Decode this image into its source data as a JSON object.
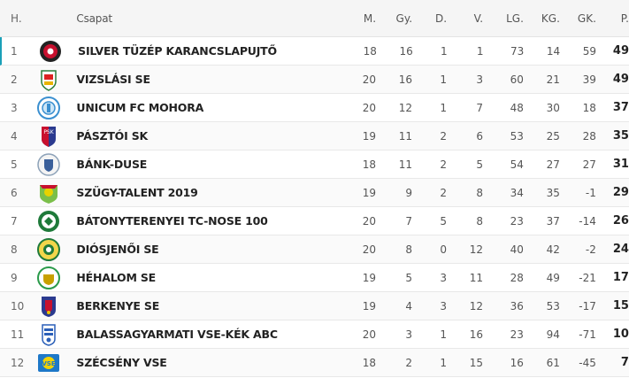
{
  "headers": {
    "pos": "H.",
    "team": "Csapat",
    "m": "M.",
    "gy": "Gy.",
    "d": "D.",
    "v": "V.",
    "lg": "LG.",
    "kg": "KG.",
    "gk": "GK.",
    "p": "P."
  },
  "rows": [
    {
      "pos": "1",
      "team": "SILVER TÜZÉP KARANCSLAPUJTŐ",
      "m": "18",
      "gy": "16",
      "d": "1",
      "v": "1",
      "lg": "73",
      "kg": "14",
      "gk": "59",
      "p": "49",
      "crest": "silver-tuzep-crest"
    },
    {
      "pos": "2",
      "team": "VIZSLÁSI SE",
      "m": "20",
      "gy": "16",
      "d": "1",
      "v": "3",
      "lg": "60",
      "kg": "21",
      "gk": "39",
      "p": "49",
      "crest": "vizslasi-crest"
    },
    {
      "pos": "3",
      "team": "UNICUM FC MOHORA",
      "m": "20",
      "gy": "12",
      "d": "1",
      "v": "7",
      "lg": "48",
      "kg": "30",
      "gk": "18",
      "p": "37",
      "crest": "unicum-crest"
    },
    {
      "pos": "4",
      "team": "PÁSZTÓI SK",
      "m": "19",
      "gy": "11",
      "d": "2",
      "v": "6",
      "lg": "53",
      "kg": "25",
      "gk": "28",
      "p": "35",
      "crest": "pasztoi-crest"
    },
    {
      "pos": "5",
      "team": "BÁNK-DUSE",
      "m": "18",
      "gy": "11",
      "d": "2",
      "v": "5",
      "lg": "54",
      "kg": "27",
      "gk": "27",
      "p": "31",
      "crest": "bank-duse-crest"
    },
    {
      "pos": "6",
      "team": "SZÜGY-TALENT 2019",
      "m": "19",
      "gy": "9",
      "d": "2",
      "v": "8",
      "lg": "34",
      "kg": "35",
      "gk": "-1",
      "p": "29",
      "crest": "szugy-crest"
    },
    {
      "pos": "7",
      "team": "BÁTONYTERENYEI TC-NOSE 100",
      "m": "20",
      "gy": "7",
      "d": "5",
      "v": "8",
      "lg": "23",
      "kg": "37",
      "gk": "-14",
      "p": "26",
      "crest": "batonyterenyei-crest"
    },
    {
      "pos": "8",
      "team": "DIÓSJENŐI SE",
      "m": "20",
      "gy": "8",
      "d": "0",
      "v": "12",
      "lg": "40",
      "kg": "42",
      "gk": "-2",
      "p": "24",
      "crest": "diosjenoi-crest"
    },
    {
      "pos": "9",
      "team": "HÉHALOM SE",
      "m": "19",
      "gy": "5",
      "d": "3",
      "v": "11",
      "lg": "28",
      "kg": "49",
      "gk": "-21",
      "p": "17",
      "crest": "hehalom-crest"
    },
    {
      "pos": "10",
      "team": "BERKENYE SE",
      "m": "19",
      "gy": "4",
      "d": "3",
      "v": "12",
      "lg": "36",
      "kg": "53",
      "gk": "-17",
      "p": "15",
      "crest": "berkenye-crest"
    },
    {
      "pos": "11",
      "team": "BALASSAGYARMATI VSE-KÉK ABC",
      "m": "20",
      "gy": "3",
      "d": "1",
      "v": "16",
      "lg": "23",
      "kg": "94",
      "gk": "-71",
      "p": "10",
      "crest": "balassagyarmati-crest"
    },
    {
      "pos": "12",
      "team": "SZÉCSÉNY VSE",
      "m": "18",
      "gy": "2",
      "d": "1",
      "v": "15",
      "lg": "16",
      "kg": "61",
      "gk": "-45",
      "p": "7",
      "crest": "szecseny-crest"
    }
  ],
  "colors": {
    "accent": "#1aa0b8",
    "header_bg": "#f5f5f5"
  }
}
